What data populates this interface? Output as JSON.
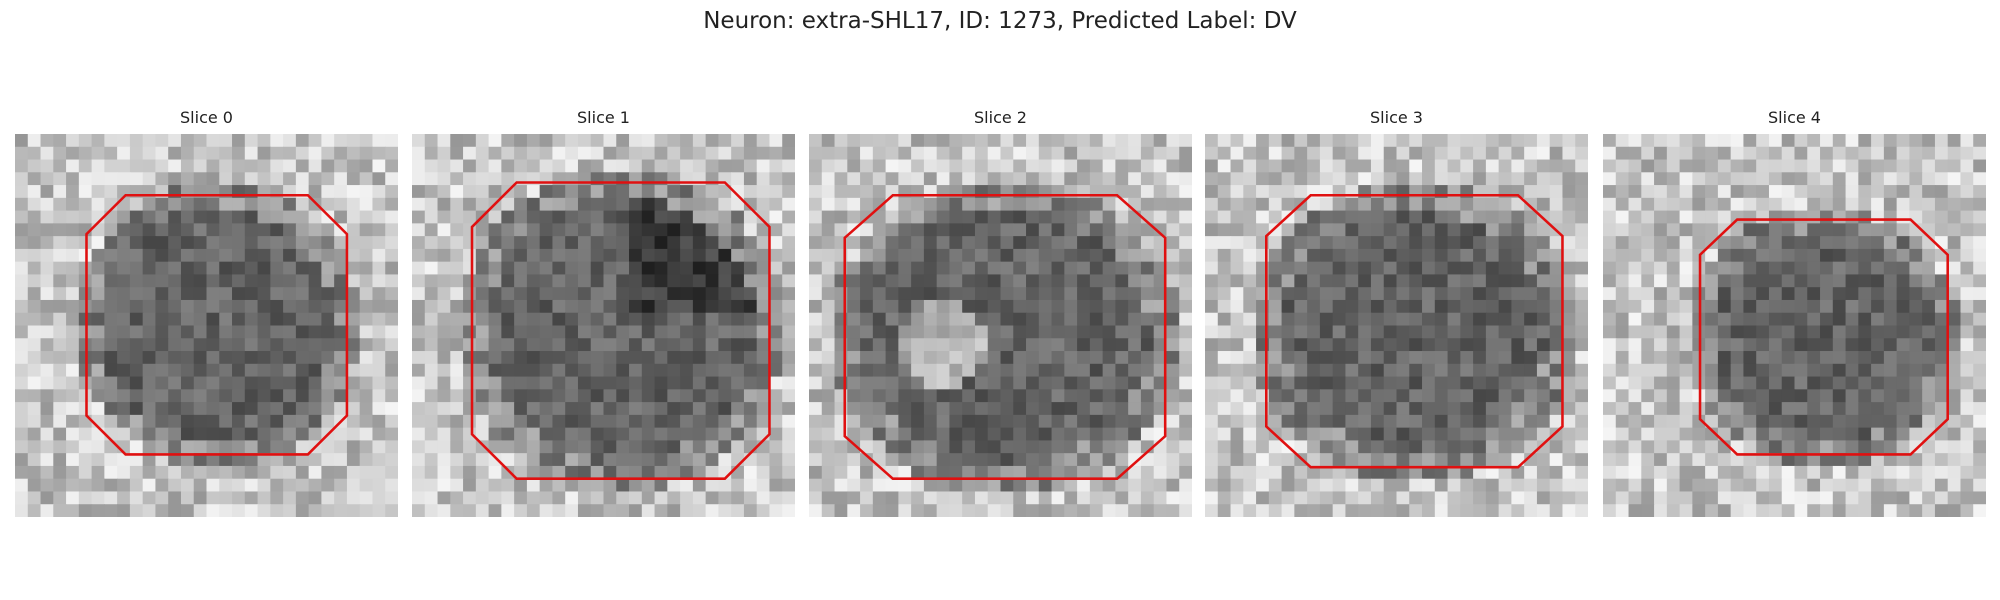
{
  "title": "Neuron: extra-SHL17, ID: 1273, Predicted Label: DV",
  "panels": [
    {
      "title": "Slice 0"
    },
    {
      "title": "Slice 1"
    },
    {
      "title": "Slice 2"
    },
    {
      "title": "Slice 3"
    },
    {
      "title": "Slice 4"
    }
  ]
}
